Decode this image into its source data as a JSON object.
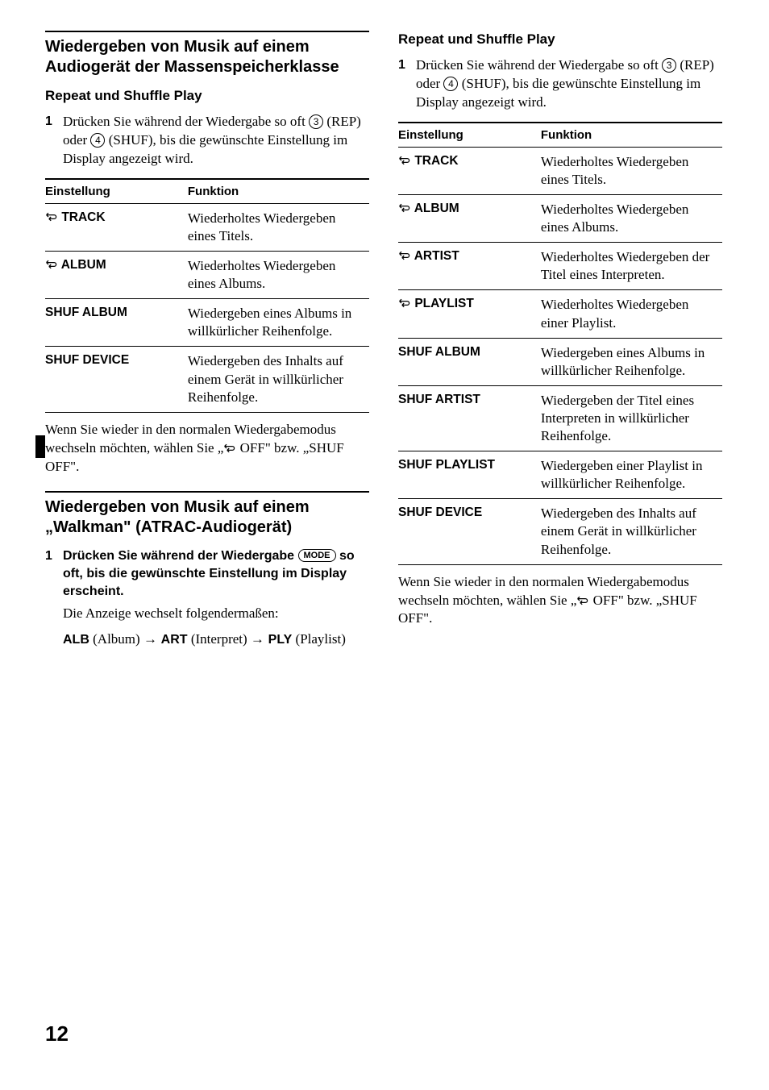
{
  "page_number": "12",
  "left": {
    "section1": {
      "heading": "Wiedergeben von Musik auf einem Audiogerät der Massenspeicherklasse",
      "subheading": "Repeat und Shuffle Play",
      "step_num": "1",
      "step_text_a": "Drücken Sie während der Wiedergabe so oft",
      "step_text_b": "(REP) oder",
      "step_text_c": "(SHUF), bis die gewünschte Einstellung im Display angezeigt wird.",
      "key_rep": "3",
      "key_shuf": "4",
      "th_setting": "Einstellung",
      "th_function": "Funktion",
      "rows": [
        {
          "name": "TRACK",
          "icon": true,
          "func": "Wiederholtes Wiedergeben eines Titels."
        },
        {
          "name": "ALBUM",
          "icon": true,
          "func": "Wiederholtes Wiedergeben eines Albums."
        },
        {
          "name": "SHUF ALBUM",
          "icon": false,
          "func": "Wiedergeben eines Albums in willkürlicher Reihenfolge."
        },
        {
          "name": "SHUF DEVICE",
          "icon": false,
          "func": "Wiedergeben des Inhalts auf einem Gerät in willkürlicher Reihenfolge."
        }
      ],
      "note_a": "Wenn Sie wieder in den normalen Wiedergabemodus wechseln möchten, wählen Sie „",
      "note_b": " OFF\" bzw. „SHUF OFF\"."
    },
    "section2": {
      "heading": "Wiedergeben von Musik auf einem „Walkman\" (ATRAC-Audiogerät)",
      "step_num": "1",
      "step_bold_a": "Drücken Sie während der Wiedergabe",
      "key_mode": "MODE",
      "step_bold_b": "so oft, bis die gewünschte Einstellung im Display erscheint.",
      "step_normal": "Die Anzeige wechselt folgendermaßen:",
      "mode_alb": "ALB",
      "mode_alb_p": "(Album)",
      "mode_art": "ART",
      "mode_art_p": "(Interpret)",
      "mode_ply": "PLY",
      "mode_ply_p": "(Playlist)"
    }
  },
  "right": {
    "subheading": "Repeat und Shuffle Play",
    "step_num": "1",
    "step_text_a": "Drücken Sie während der Wiedergabe so oft",
    "step_text_b": "(REP) oder",
    "step_text_c": "(SHUF), bis die gewünschte Einstellung im Display angezeigt wird.",
    "key_rep": "3",
    "key_shuf": "4",
    "th_setting": "Einstellung",
    "th_function": "Funktion",
    "rows": [
      {
        "name": "TRACK",
        "icon": true,
        "func": "Wiederholtes Wiedergeben eines Titels."
      },
      {
        "name": "ALBUM",
        "icon": true,
        "func": "Wiederholtes Wiedergeben eines Albums."
      },
      {
        "name": "ARTIST",
        "icon": true,
        "func": "Wiederholtes Wiedergeben der Titel eines Interpreten."
      },
      {
        "name": "PLAYLIST",
        "icon": true,
        "func": "Wiederholtes Wiedergeben einer Playlist."
      },
      {
        "name": "SHUF ALBUM",
        "icon": false,
        "func": "Wiedergeben eines Albums in willkürlicher Reihenfolge."
      },
      {
        "name": "SHUF ARTIST",
        "icon": false,
        "func": "Wiedergeben der Titel eines Interpreten in willkürlicher Reihenfolge."
      },
      {
        "name": "SHUF PLAYLIST",
        "icon": false,
        "func": "Wiedergeben einer Playlist in willkürlicher Reihenfolge."
      },
      {
        "name": "SHUF DEVICE",
        "icon": false,
        "func": "Wiedergeben des Inhalts auf einem Gerät in willkürlicher Reihenfolge."
      }
    ],
    "note_a": "Wenn Sie wieder in den normalen Wiedergabemodus wechseln möchten, wählen Sie „",
    "note_b": " OFF\" bzw. „SHUF OFF\"."
  }
}
